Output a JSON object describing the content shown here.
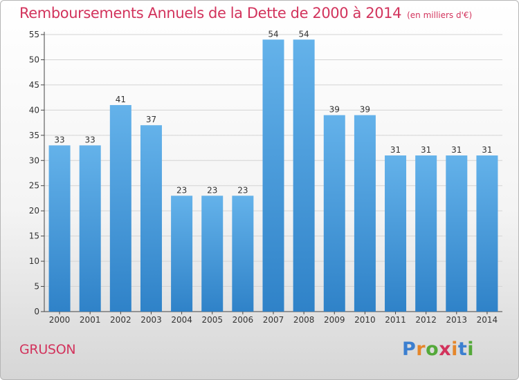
{
  "chart_data": {
    "type": "bar",
    "title": "Remboursements Annuels de la Dette de 2000 à 2014",
    "unit_label": "(en milliers d'€)",
    "categories": [
      "2000",
      "2001",
      "2002",
      "2003",
      "2004",
      "2005",
      "2006",
      "2007",
      "2008",
      "2009",
      "2010",
      "2011",
      "2012",
      "2013",
      "2014"
    ],
    "values": [
      33,
      33,
      41,
      37,
      23,
      23,
      23,
      54,
      54,
      39,
      39,
      31,
      31,
      31,
      31
    ],
    "ylim": [
      0,
      55
    ],
    "yticks": [
      0,
      5,
      10,
      15,
      20,
      25,
      30,
      35,
      40,
      45,
      50,
      55
    ],
    "grid": true,
    "bar_color_top": "#64b2ea",
    "bar_color_bottom": "#2f82c8"
  },
  "commune_name": "GRUSON",
  "logo": {
    "letters": [
      "P",
      "r",
      "o",
      "x",
      "i",
      "t",
      "i"
    ],
    "colors": [
      "#3b7fd0",
      "#e5862b",
      "#54a93a",
      "#d2335c",
      "#e5862b",
      "#3b7fd0",
      "#54a93a"
    ]
  }
}
